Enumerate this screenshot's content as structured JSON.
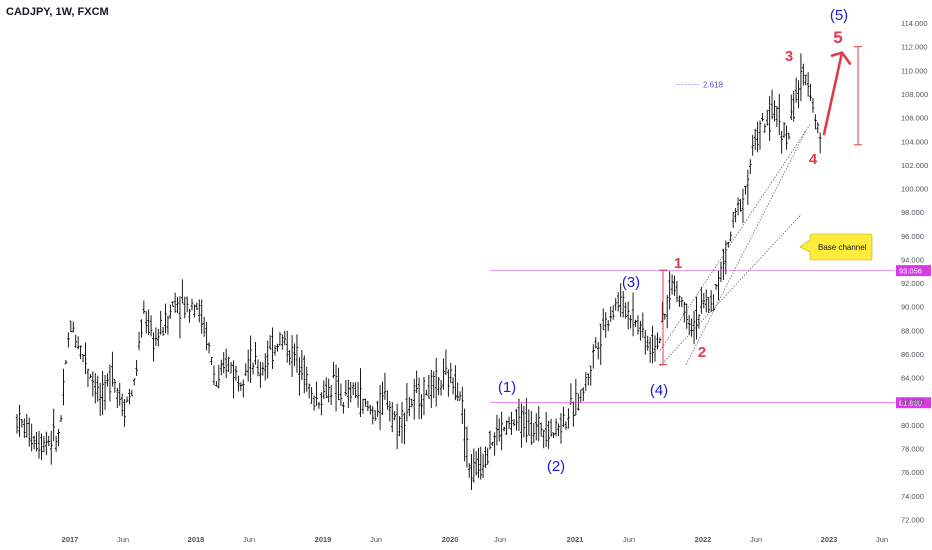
{
  "chart_data": {
    "type": "candlestick",
    "title": "CADJPY, 1W, FXCM",
    "y_ticks": [
      72,
      74,
      76,
      78,
      80,
      82,
      84,
      86,
      88,
      90,
      92,
      94,
      96,
      98,
      100,
      102,
      104,
      106,
      108,
      110,
      112,
      114
    ],
    "ylim": [
      71,
      116
    ],
    "x_ticks": [
      "2017",
      "Jun",
      "2018",
      "Jun",
      "2019",
      "Jun",
      "2020",
      "Jun",
      "2021",
      "Jun",
      "2022",
      "Jun",
      "2023",
      "Jun"
    ],
    "price_path": [
      [
        "2016-08",
        80.5
      ],
      [
        "2016-10",
        78.5
      ],
      [
        "2016-12",
        79.0
      ],
      [
        "2017-01",
        88.5
      ],
      [
        "2017-02",
        86.5
      ],
      [
        "2017-04",
        82.0
      ],
      [
        "2017-05",
        84.5
      ],
      [
        "2017-06",
        81.5
      ],
      [
        "2017-07",
        83.0
      ],
      [
        "2017-08",
        89.5
      ],
      [
        "2017-09",
        87.0
      ],
      [
        "2017-10",
        88.5
      ],
      [
        "2017-11",
        90.5
      ],
      [
        "2017-12",
        90.0
      ],
      [
        "2018-01",
        90.5
      ],
      [
        "2018-02",
        87.5
      ],
      [
        "2018-03",
        83.0
      ],
      [
        "2018-04",
        85.5
      ],
      [
        "2018-05",
        84.0
      ],
      [
        "2018-06",
        85.5
      ],
      [
        "2018-07",
        84.5
      ],
      [
        "2018-08",
        86.0
      ],
      [
        "2018-09",
        87.5
      ],
      [
        "2018-10",
        86.0
      ],
      [
        "2018-11",
        85.5
      ],
      [
        "2018-12",
        82.0
      ],
      [
        "2019-01",
        82.5
      ],
      [
        "2019-02",
        83.5
      ],
      [
        "2019-03",
        82.0
      ],
      [
        "2019-04",
        83.0
      ],
      [
        "2019-05",
        81.5
      ],
      [
        "2019-06",
        81.0
      ],
      [
        "2019-07",
        82.5
      ],
      [
        "2019-08",
        80.0
      ],
      [
        "2019-09",
        81.5
      ],
      [
        "2019-10",
        82.5
      ],
      [
        "2019-11",
        83.0
      ],
      [
        "2019-12",
        83.5
      ],
      [
        "2020-01",
        84.0
      ],
      [
        "2020-02",
        83.0
      ],
      [
        "2020-03",
        76.0
      ],
      [
        "2020-04",
        76.5
      ],
      [
        "2020-05",
        78.5
      ],
      [
        "2020-06",
        79.5
      ],
      [
        "2020-07",
        80.0
      ],
      [
        "2020-08",
        80.5
      ],
      [
        "2020-09",
        79.5
      ],
      [
        "2020-10",
        80.0
      ],
      [
        "2020-11",
        79.5
      ],
      [
        "2020-12",
        80.5
      ],
      [
        "2021-01",
        81.5
      ],
      [
        "2021-02",
        83.5
      ],
      [
        "2021-03",
        87.0
      ],
      [
        "2021-04",
        89.0
      ],
      [
        "2021-05",
        90.5
      ],
      [
        "2021-06",
        89.5
      ],
      [
        "2021-07",
        88.5
      ],
      [
        "2021-08",
        86.5
      ],
      [
        "2021-09",
        87.5
      ],
      [
        "2021-10",
        92.0
      ],
      [
        "2021-11",
        90.5
      ],
      [
        "2021-12",
        88.5
      ],
      [
        "2022-01",
        90.0
      ],
      [
        "2022-02",
        90.5
      ],
      [
        "2022-03",
        94.0
      ],
      [
        "2022-04",
        97.5
      ],
      [
        "2022-05",
        100.0
      ],
      [
        "2022-06",
        104.5
      ],
      [
        "2022-07",
        105.5
      ],
      [
        "2022-08",
        106.5
      ],
      [
        "2022-09",
        104.0
      ],
      [
        "2022-10",
        108.5
      ],
      [
        "2022-11",
        109.5
      ],
      [
        "2022-12",
        104.5
      ]
    ],
    "price_labels": [
      {
        "text": "93.056",
        "value": 93.056,
        "color": "#d63be6"
      },
      {
        "text": "81.880",
        "value": 81.88,
        "color": "#d63be6"
      }
    ],
    "annotations": {
      "waves_major": [
        {
          "text": "(1)",
          "date": "2020-06"
        },
        {
          "text": "(2)",
          "date": "2020-11"
        },
        {
          "text": "(3)",
          "date": "2021-05"
        },
        {
          "text": "(4)",
          "date": "2021-08"
        },
        {
          "text": "(5)",
          "date": "2022-12"
        }
      ],
      "waves_minor": [
        {
          "text": "1",
          "date": "2021-10"
        },
        {
          "text": "2",
          "date": "2021-12"
        },
        {
          "text": "3",
          "date": "2022-10"
        },
        {
          "text": "4",
          "date": "2022-11"
        },
        {
          "text": "5",
          "date": "2022-12"
        }
      ],
      "fib_label": "2.618",
      "callout": "Base channel"
    },
    "colors": {
      "major_wave": "#1a1adb",
      "minor_wave": "#e03b4b",
      "bar": "#000000",
      "level_line": "#d63be6",
      "callout_bg": "#ffeb3b"
    }
  }
}
